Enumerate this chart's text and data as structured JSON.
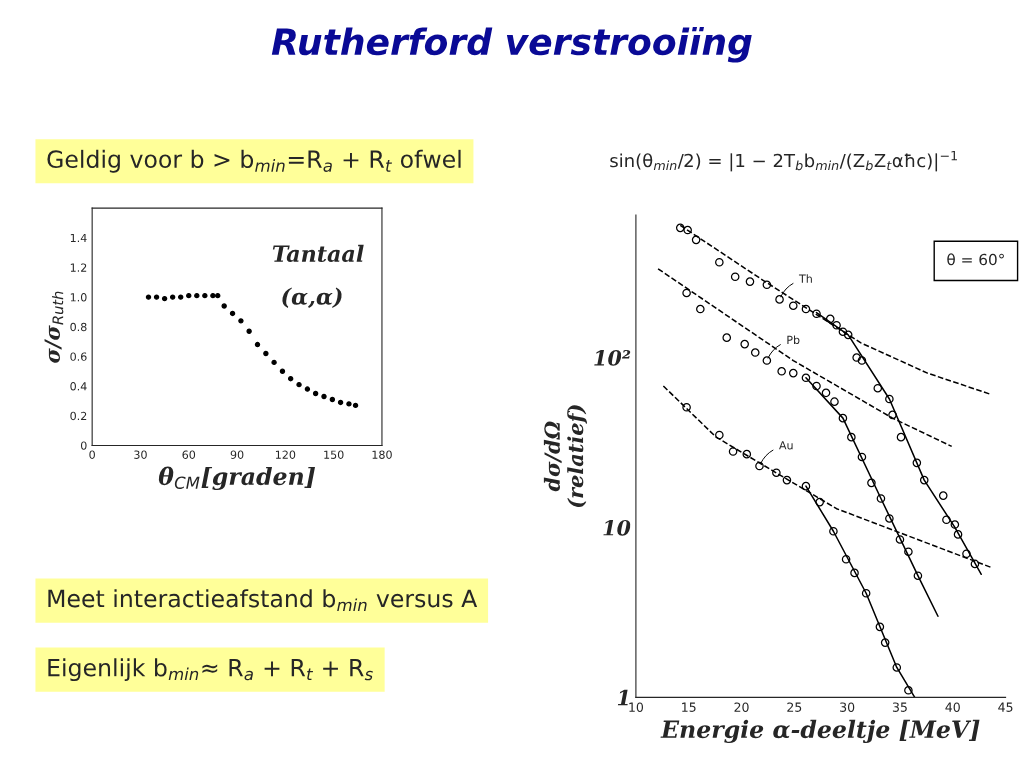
{
  "chart_data": [
    {
      "type": "scatter",
      "title": "Rutherford verstrooiïng",
      "xlabel": "θ$_{CM}$[graden]",
      "ylabel": "σ/σ$_{Ruth}$",
      "annotations": [
        "Tantaal",
        "(α,α)",
        "Geldig voor b > b$_{min}$=R$_{a}$ + R$_{t}$ ofwel",
        "Meet interactieafstand b$_{min}$ versus A",
        "Eigenlijk b$_{min}$≈ R$_{a}$ + R$_{t}$ + R$_{s}$"
      ],
      "xlim": [
        0,
        180
      ],
      "xticks": [
        0,
        30,
        60,
        90,
        120,
        150,
        180
      ],
      "ylim": [
        0,
        1.6
      ],
      "yticks": [
        0,
        0.2,
        0.4,
        0.6,
        0.8,
        {
          "value": 1.0,
          "label": "1.0"
        },
        1.2,
        1.4
      ],
      "marker": "circle",
      "grid": false,
      "series": [
        {
          "color": "#000000",
          "x": [
            35,
            40,
            45,
            50,
            55,
            60,
            65,
            70,
            75,
            78,
            82,
            87.2,
            92.4,
            97.5,
            102.7,
            107.9,
            113,
            118.2,
            123.3,
            128.5,
            133.7,
            138.8,
            144,
            149.2,
            154.3,
            159.5,
            163.6
          ],
          "values": [
            1.0,
            1.0,
            0.99,
            1.0,
            1.0,
            1.01,
            1.01,
            1.01,
            1.01,
            1.01,
            0.94,
            0.89,
            0.84,
            0.77,
            0.68,
            0.62,
            0.56,
            0.5,
            0.45,
            0.41,
            0.38,
            0.35,
            0.33,
            0.31,
            0.29,
            0.28,
            0.27
          ]
        }
      ]
    },
    {
      "type": "scatter",
      "xlabel": "Energie α-deeltje [MeV]",
      "ylabel": "dσ/dΩ\n(relatief)",
      "log": "y",
      "annotations": [
        "θ = 60°",
        "sin(θ$_{min}$/2) = |1 − 2T$_{b}$b$_{min}$/(Z$_{b}$Z$_{t}$αħc)|$^{−1}$"
      ],
      "xlim": [
        10,
        45
      ],
      "xticks": [
        10,
        15,
        20,
        25,
        30,
        35,
        40,
        45
      ],
      "ylim": [
        1,
        690
      ],
      "yticks": [
        {
          "value": 1,
          "label": "1"
        },
        {
          "value": 10,
          "label": "10"
        },
        {
          "value": 100,
          "label": "10²"
        }
      ],
      "grid": false,
      "series": [
        {
          "name": "Th",
          "type": "scatter",
          "marker": "circle",
          "color": "#000000",
          "x": [
            14.2,
            14.9,
            15.7,
            17.9,
            19.4,
            20.8,
            22.4,
            23.6,
            24.9,
            26.1,
            27.1,
            28.4,
            29.0,
            29.6,
            30.1,
            30.9,
            31.4,
            32.9,
            34.0,
            34.3,
            35.1,
            36.6,
            37.3,
            39.1,
            39.4,
            40.2,
            40.5,
            41.3,
            42.1
          ],
          "values": [
            580,
            563,
            493,
            364,
            299,
            280,
            268,
            220,
            202,
            193,
            181,
            169,
            155,
            142,
            136,
            100,
            96,
            66,
            57,
            46,
            34,
            24,
            19,
            15.4,
            11.1,
            10.4,
            9.1,
            7.0,
            6.1
          ]
        },
        {
          "type": "line",
          "line_style": "dashed",
          "color": "#000000",
          "x": [
            14.2,
            22.0,
            31.3,
            37.6,
            43.5
          ],
          "values": [
            600,
            286,
            122,
            81,
            61
          ]
        },
        {
          "type": "line",
          "line_style": "solid",
          "color": "#000000",
          "x": [
            27.1,
            30.1,
            34.0,
            37.3,
            40.2,
            42.7
          ],
          "values": [
            184,
            136,
            57,
            19,
            10,
            5.3
          ]
        },
        {
          "name": "Pb",
          "type": "scatter",
          "marker": "circle",
          "color": "#000000",
          "x": [
            14.8,
            16.1,
            18.6,
            20.3,
            21.3,
            22.4,
            23.8,
            24.9,
            26.1,
            27.1,
            28.0,
            28.8,
            29.6,
            30.4,
            31.4,
            32.3,
            33.2,
            34.0,
            35.0,
            35.8,
            36.7
          ],
          "values": [
            240,
            193,
            131,
            120,
            107,
            96,
            83,
            81,
            76,
            68,
            62,
            55,
            44,
            34,
            26,
            18.3,
            14.8,
            11.3,
            8.5,
            7.2,
            5.2
          ]
        },
        {
          "type": "line",
          "line_style": "dashed",
          "color": "#000000",
          "x": [
            12.1,
            24.9,
            34.3,
            39.9
          ],
          "values": [
            333,
            96,
            44,
            30
          ]
        },
        {
          "type": "line",
          "line_style": "solid",
          "color": "#000000",
          "x": [
            26.1,
            29.6,
            33.2,
            36.7,
            38.6
          ],
          "values": [
            76,
            44,
            14.8,
            5.2,
            3.0
          ]
        },
        {
          "name": "Au",
          "type": "scatter",
          "marker": "circle",
          "color": "#000000",
          "x": [
            14.8,
            17.9,
            19.2,
            20.5,
            21.7,
            23.3,
            24.3,
            26.1,
            27.4,
            28.7,
            29.9,
            30.7,
            31.8,
            33.1,
            33.6,
            34.7,
            35.8
          ],
          "values": [
            51,
            35,
            28,
            27,
            23,
            21,
            19,
            17.5,
            14.1,
            9.5,
            6.5,
            5.4,
            4.1,
            2.6,
            2.1,
            1.5,
            1.1
          ]
        },
        {
          "type": "line",
          "line_style": "dashed",
          "color": "#000000",
          "x": [
            12.6,
            17.6,
            29.0,
            43.7
          ],
          "values": [
            68,
            34,
            12.9,
            5.8
          ]
        },
        {
          "type": "line",
          "line_style": "solid",
          "color": "#000000",
          "x": [
            26.1,
            28.7,
            31.8,
            34.7,
            36.4
          ],
          "values": [
            17.5,
            9.5,
            4.1,
            1.5,
            1.0
          ]
        }
      ]
    }
  ]
}
